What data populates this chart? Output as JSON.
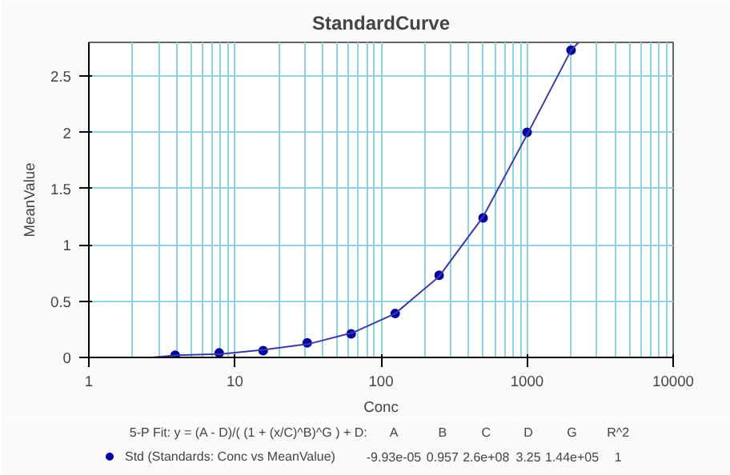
{
  "chart_data": {
    "type": "scatter",
    "title": "StandardCurve",
    "xlabel": "Conc",
    "ylabel": "MeanValue",
    "log": "x",
    "xlim": [
      1,
      10000
    ],
    "xticks": [
      1,
      10,
      100,
      1000,
      10000
    ],
    "ylim": [
      0,
      2.8
    ],
    "yticks": [
      0,
      0.5,
      1,
      1.5,
      2,
      2.5
    ],
    "grid": true,
    "legend": "bottom left",
    "series": [
      {
        "name": "Std (Standards: Conc vs MeanValue)",
        "color": "#0000a0",
        "marker": "circle",
        "x": [
          3.9,
          7.8,
          15.6,
          31.25,
          62.5,
          125,
          250,
          500,
          1000,
          2000
        ],
        "values": [
          0.02,
          0.04,
          0.06,
          0.13,
          0.21,
          0.39,
          0.73,
          1.24,
          2.0,
          2.73
        ]
      },
      {
        "type": "line",
        "color": "#3a3aa8",
        "line_style": "solid",
        "x": [
          2.7,
          4,
          8,
          16,
          32,
          64,
          125,
          250,
          500,
          1000,
          2000,
          2250
        ],
        "values": [
          0.0,
          0.02,
          0.03,
          0.07,
          0.12,
          0.22,
          0.39,
          0.72,
          1.25,
          1.98,
          2.73,
          2.8
        ]
      }
    ],
    "annotations": [
      "5-P Fit: y = (A - D)/( (1 + (x/C)^B)^G ) + D:",
      "A",
      "B",
      "C",
      "D",
      "G",
      "R^2",
      "-9.93e-05",
      "0.957",
      "2.6e+08",
      "3.25",
      "1.44e+05",
      "1"
    ]
  }
}
